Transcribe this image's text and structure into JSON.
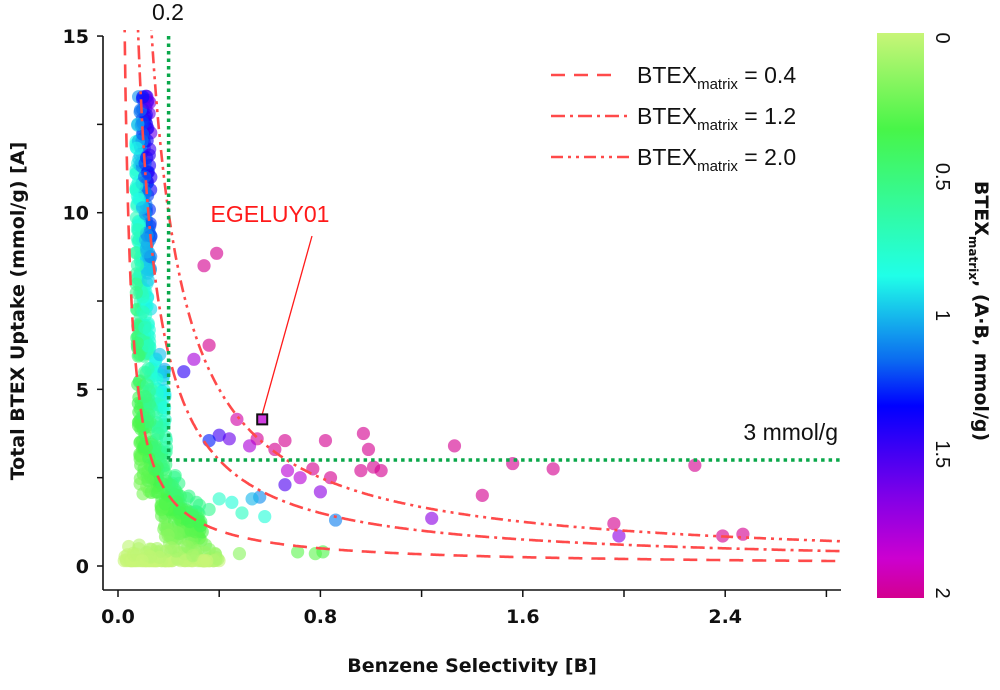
{
  "chart_data": {
    "type": "scatter",
    "title": "",
    "xlabel": "Benzene Selectivity [B]",
    "ylabel": "Total BTEX Uptake (mmol/g) [A]",
    "xlim": [
      -0.06,
      2.86
    ],
    "ylim": [
      0,
      15
    ],
    "x_ticks": [
      0.0,
      0.4,
      0.8,
      1.2,
      1.6,
      2.0,
      2.4,
      2.8
    ],
    "x_tick_labels": [
      "0.0",
      "0.8",
      "1.6",
      "2.4"
    ],
    "x_tick_label_values": [
      0.0,
      0.8,
      1.6,
      2.4
    ],
    "y_ticks": [
      0,
      2.5,
      5,
      7.5,
      10,
      12.5,
      15
    ],
    "y_tick_labels": [
      "0",
      "5",
      "10",
      "15"
    ],
    "y_tick_label_values": [
      0,
      5,
      10,
      15
    ],
    "grid": false,
    "colorbar": {
      "label_main": "BTEX",
      "label_sub": "matrix",
      "label_rest": ", (A·B, mmol/g)",
      "range": [
        0,
        2
      ],
      "tick_labels": [
        "0",
        "0.5",
        "1",
        "1.5",
        "2"
      ],
      "tick_values": [
        0,
        0.5,
        1,
        1.5,
        2
      ],
      "colormap": [
        "#c8f578",
        "#48f548",
        "#20ffe8",
        "#0b58f0",
        "#0000ff",
        "#7a00ee",
        "#cc00dd",
        "#d3008f"
      ]
    },
    "reference_curves": [
      {
        "name": "BTEXmatrix = 0.4",
        "label_main": "BTEX",
        "label_sub": "matrix",
        "label_value": " = 0.4",
        "constant": 0.4,
        "style": "dash",
        "color": "#ff4a4a"
      },
      {
        "name": "BTEXmatrix = 1.2",
        "label_main": "BTEX",
        "label_sub": "matrix",
        "label_value": " = 1.2",
        "constant": 1.2,
        "style": "dash-dot",
        "color": "#ff4a4a"
      },
      {
        "name": "BTEXmatrix = 2.0",
        "label_main": "BTEX",
        "label_sub": "matrix",
        "label_value": " = 2.0",
        "constant": 2.0,
        "style": "dash-dot-dot",
        "color": "#ff4a4a"
      }
    ],
    "threshold_lines": [
      {
        "orientation": "vertical",
        "x": 0.2,
        "label": "0.2",
        "color": "#0aa84a"
      },
      {
        "orientation": "horizontal",
        "y": 3,
        "label": "3 mmol/g",
        "color": "#0aa84a"
      }
    ],
    "annotation": {
      "label": "EGELUY01",
      "x": 0.57,
      "y": 4.15,
      "color": "#ff1a1a"
    },
    "outlier_points": [
      {
        "x": 0.34,
        "y": 8.5
      },
      {
        "x": 0.39,
        "y": 8.85
      },
      {
        "x": 0.36,
        "y": 6.25
      },
      {
        "x": 0.3,
        "y": 5.85
      },
      {
        "x": 0.26,
        "y": 5.5
      },
      {
        "x": 0.47,
        "y": 4.15
      },
      {
        "x": 0.66,
        "y": 3.55
      },
      {
        "x": 0.82,
        "y": 3.55
      },
      {
        "x": 0.97,
        "y": 3.75
      },
      {
        "x": 0.99,
        "y": 3.3
      },
      {
        "x": 0.96,
        "y": 2.7
      },
      {
        "x": 1.01,
        "y": 2.8
      },
      {
        "x": 1.04,
        "y": 2.7
      },
      {
        "x": 1.33,
        "y": 3.4
      },
      {
        "x": 1.56,
        "y": 2.9
      },
      {
        "x": 1.72,
        "y": 2.75
      },
      {
        "x": 2.28,
        "y": 2.85
      },
      {
        "x": 1.44,
        "y": 2.0
      },
      {
        "x": 1.96,
        "y": 1.2
      },
      {
        "x": 1.98,
        "y": 0.85
      },
      {
        "x": 2.39,
        "y": 0.85
      },
      {
        "x": 2.47,
        "y": 0.9
      },
      {
        "x": 1.24,
        "y": 1.35
      },
      {
        "x": 0.86,
        "y": 1.3
      },
      {
        "x": 0.72,
        "y": 2.5
      },
      {
        "x": 0.77,
        "y": 2.75
      },
      {
        "x": 0.8,
        "y": 2.1
      },
      {
        "x": 0.84,
        "y": 2.5
      },
      {
        "x": 0.67,
        "y": 2.7
      },
      {
        "x": 0.66,
        "y": 2.3
      },
      {
        "x": 0.56,
        "y": 1.95
      },
      {
        "x": 0.53,
        "y": 1.9
      },
      {
        "x": 0.58,
        "y": 1.4
      },
      {
        "x": 0.49,
        "y": 1.5
      },
      {
        "x": 0.45,
        "y": 1.8
      },
      {
        "x": 0.4,
        "y": 1.9
      },
      {
        "x": 0.36,
        "y": 1.6
      },
      {
        "x": 0.31,
        "y": 1.8
      },
      {
        "x": 0.71,
        "y": 0.4
      },
      {
        "x": 0.78,
        "y": 0.35
      },
      {
        "x": 0.81,
        "y": 0.4
      },
      {
        "x": 0.48,
        "y": 0.35
      },
      {
        "x": 0.55,
        "y": 3.6
      },
      {
        "x": 0.52,
        "y": 3.4
      },
      {
        "x": 0.62,
        "y": 3.3
      },
      {
        "x": 0.44,
        "y": 3.6
      },
      {
        "x": 0.4,
        "y": 3.7
      },
      {
        "x": 0.36,
        "y": 3.55
      }
    ],
    "cluster_description": "Several hundred MOF points concentrated at B < 0.35; uptake up to ~13.4 mmol/g near B ≈ 0.08; color encodes BTEXmatrix = A·B"
  }
}
